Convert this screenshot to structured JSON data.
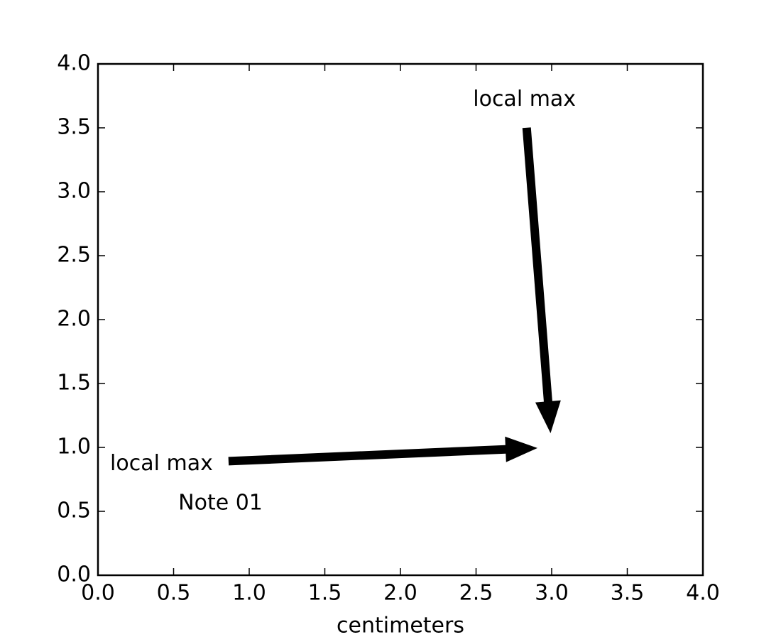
{
  "chart_data": {
    "type": "annotation",
    "xlabel": "centimeters",
    "xlim": [
      0,
      4
    ],
    "ylim": [
      0,
      4
    ],
    "xticks": [
      {
        "value": 0,
        "label": "0.0"
      },
      {
        "value": 0.5,
        "label": "0.5"
      },
      {
        "value": 1,
        "label": "1.0"
      },
      {
        "value": 1.5,
        "label": "1.5"
      },
      {
        "value": 2,
        "label": "2.0"
      },
      {
        "value": 2.5,
        "label": "2.5"
      },
      {
        "value": 3,
        "label": "3.0"
      },
      {
        "value": 3.5,
        "label": "3.5"
      },
      {
        "value": 4,
        "label": "4.0"
      }
    ],
    "yticks": [
      {
        "value": 0,
        "label": "0.0"
      },
      {
        "value": 0.5,
        "label": "0.5"
      },
      {
        "value": 1,
        "label": "1.0"
      },
      {
        "value": 1.5,
        "label": "1.5"
      },
      {
        "value": 2,
        "label": "2.0"
      },
      {
        "value": 2.5,
        "label": "2.5"
      },
      {
        "value": 3,
        "label": "3.0"
      },
      {
        "value": 3.5,
        "label": "3.5"
      },
      {
        "value": 4,
        "label": "4.0"
      }
    ],
    "color": "#000000",
    "annotations": [
      {
        "text": "local max",
        "xy": [
          3,
          1
        ],
        "xytext": [
          0.42,
          0.87
        ]
      },
      {
        "text": "local max",
        "xy": [
          3,
          1
        ],
        "xytext": [
          2.82,
          3.72
        ]
      },
      {
        "text": "Note 01",
        "xytext": [
          0.81,
          0.56
        ]
      }
    ]
  }
}
